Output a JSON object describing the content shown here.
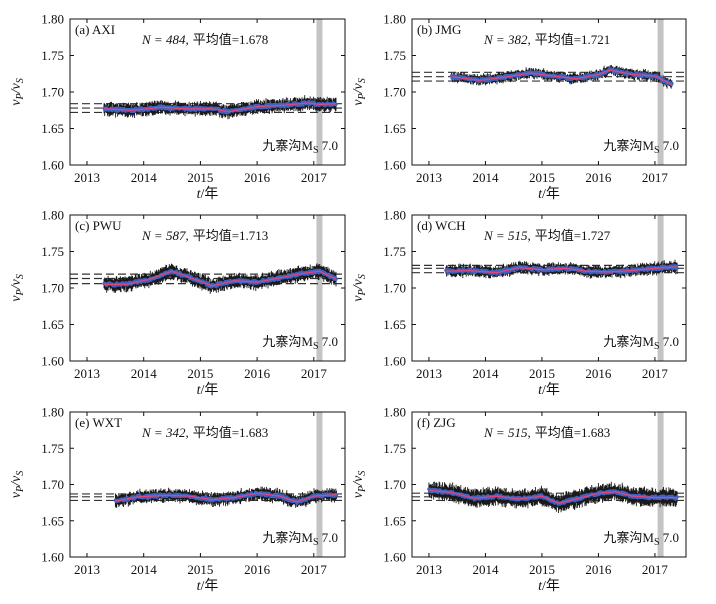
{
  "colors": {
    "mean_line": "#333333",
    "errorbar": "#1a1a1a",
    "points": "#3d63c4",
    "fit": "#e0457b",
    "quake_band": "#c4c4c4"
  },
  "chart_data": [
    {
      "type": "scatter",
      "panel_label": "(a) AXI",
      "stat_n": "N = 484,",
      "stat_mean": "平均值=1.678",
      "mean_value": 1.678,
      "mean_band": [
        1.672,
        1.684
      ],
      "event_label": "九寨沟M",
      "event_sub": "S",
      "event_mag": " 7.0",
      "event_year": 2017.1,
      "xlim": [
        2012.7,
        2017.55
      ],
      "ylim": [
        1.6,
        1.8
      ],
      "xticks": [
        "2013",
        "2014",
        "2015",
        "2016",
        "2017"
      ],
      "yticks": [
        "1.60",
        "1.65",
        "1.70",
        "1.75",
        "1.80"
      ],
      "ylabel_main": "v",
      "ylabel_sub1": "P",
      "ylabel_div": "/v",
      "ylabel_sub2": "S",
      "xlabel_main": "t",
      "xlabel_unit": "/年",
      "data_start": 2013.3,
      "data_end": 2017.4,
      "err": 0.008,
      "trend": [
        [
          2013.3,
          1.677
        ],
        [
          2013.8,
          1.675
        ],
        [
          2014.3,
          1.679
        ],
        [
          2014.8,
          1.677
        ],
        [
          2015.2,
          1.677
        ],
        [
          2015.5,
          1.673
        ],
        [
          2016.0,
          1.68
        ],
        [
          2016.5,
          1.682
        ],
        [
          2016.9,
          1.685
        ],
        [
          2017.1,
          1.683
        ],
        [
          2017.4,
          1.684
        ]
      ]
    },
    {
      "type": "scatter",
      "panel_label": "(b) JMG",
      "stat_n": "N = 382,",
      "stat_mean": "平均值=1.721",
      "mean_value": 1.721,
      "mean_band": [
        1.715,
        1.727
      ],
      "event_label": "九寨沟M",
      "event_sub": "S",
      "event_mag": " 7.0",
      "event_year": 2017.1,
      "xlim": [
        2012.7,
        2017.55
      ],
      "ylim": [
        1.6,
        1.8
      ],
      "xticks": [
        "2013",
        "2014",
        "2015",
        "2016",
        "2017"
      ],
      "yticks": [
        "1.60",
        "1.65",
        "1.70",
        "1.75",
        "1.80"
      ],
      "ylabel_main": "v",
      "ylabel_sub1": "P",
      "ylabel_div": "/v",
      "ylabel_sub2": "S",
      "xlabel_main": "t",
      "xlabel_unit": "/年",
      "data_start": 2013.4,
      "data_end": 2017.3,
      "err": 0.006,
      "trend": [
        [
          2013.4,
          1.721
        ],
        [
          2013.9,
          1.716
        ],
        [
          2014.3,
          1.72
        ],
        [
          2014.8,
          1.726
        ],
        [
          2015.2,
          1.722
        ],
        [
          2015.6,
          1.718
        ],
        [
          2016.0,
          1.724
        ],
        [
          2016.2,
          1.73
        ],
        [
          2016.6,
          1.724
        ],
        [
          2017.0,
          1.722
        ],
        [
          2017.3,
          1.71
        ]
      ]
    },
    {
      "type": "scatter",
      "panel_label": "(c) PWU",
      "stat_n": "N = 587,",
      "stat_mean": "平均值=1.713",
      "mean_value": 1.713,
      "mean_band": [
        1.706,
        1.719
      ],
      "event_label": "九寨沟M",
      "event_sub": "S",
      "event_mag": " 7.0",
      "event_year": 2017.1,
      "xlim": [
        2012.7,
        2017.55
      ],
      "ylim": [
        1.6,
        1.8
      ],
      "xticks": [
        "2013",
        "2014",
        "2015",
        "2016",
        "2017"
      ],
      "yticks": [
        "1.60",
        "1.65",
        "1.70",
        "1.75",
        "1.80"
      ],
      "ylabel_main": "v",
      "ylabel_sub1": "P",
      "ylabel_div": "/v",
      "ylabel_sub2": "S",
      "xlabel_main": "t",
      "xlabel_unit": "/年",
      "data_start": 2013.3,
      "data_end": 2017.4,
      "err": 0.009,
      "trend": [
        [
          2013.3,
          1.705
        ],
        [
          2013.7,
          1.705
        ],
        [
          2014.1,
          1.712
        ],
        [
          2014.5,
          1.723
        ],
        [
          2014.9,
          1.712
        ],
        [
          2015.2,
          1.703
        ],
        [
          2015.6,
          1.71
        ],
        [
          2016.0,
          1.708
        ],
        [
          2016.4,
          1.714
        ],
        [
          2016.8,
          1.72
        ],
        [
          2017.1,
          1.723
        ],
        [
          2017.4,
          1.712
        ]
      ]
    },
    {
      "type": "scatter",
      "panel_label": "(d) WCH",
      "stat_n": "N = 515,",
      "stat_mean": "平均值=1.727",
      "mean_value": 1.727,
      "mean_band": [
        1.721,
        1.731
      ],
      "event_label": "九寨沟M",
      "event_sub": "S",
      "event_mag": " 7.0",
      "event_year": 2017.1,
      "xlim": [
        2012.7,
        2017.55
      ],
      "ylim": [
        1.6,
        1.8
      ],
      "xticks": [
        "2013",
        "2014",
        "2015",
        "2016",
        "2017"
      ],
      "yticks": [
        "1.60",
        "1.65",
        "1.70",
        "1.75",
        "1.80"
      ],
      "ylabel_main": "v",
      "ylabel_sub1": "P",
      "ylabel_div": "/v",
      "ylabel_sub2": "S",
      "xlabel_main": "t",
      "xlabel_unit": "/年",
      "data_start": 2013.3,
      "data_end": 2017.4,
      "err": 0.007,
      "trend": [
        [
          2013.3,
          1.723
        ],
        [
          2013.7,
          1.724
        ],
        [
          2014.2,
          1.721
        ],
        [
          2014.6,
          1.728
        ],
        [
          2015.0,
          1.725
        ],
        [
          2015.4,
          1.727
        ],
        [
          2015.8,
          1.723
        ],
        [
          2016.2,
          1.722
        ],
        [
          2016.6,
          1.724
        ],
        [
          2017.0,
          1.727
        ],
        [
          2017.4,
          1.729
        ]
      ]
    },
    {
      "type": "scatter",
      "panel_label": "(e) WXT",
      "stat_n": "N = 342,",
      "stat_mean": "平均值=1.683",
      "mean_value": 1.683,
      "mean_band": [
        1.678,
        1.687
      ],
      "event_label": "九寨沟M",
      "event_sub": "S",
      "event_mag": " 7.0",
      "event_year": 2017.1,
      "xlim": [
        2012.7,
        2017.55
      ],
      "ylim": [
        1.6,
        1.8
      ],
      "xticks": [
        "2013",
        "2014",
        "2015",
        "2016",
        "2017"
      ],
      "yticks": [
        "1.60",
        "1.65",
        "1.70",
        "1.75",
        "1.80"
      ],
      "ylabel_main": "v",
      "ylabel_sub1": "P",
      "ylabel_div": "/v",
      "ylabel_sub2": "S",
      "xlabel_main": "t",
      "xlabel_unit": "/年",
      "data_start": 2013.5,
      "data_end": 2017.4,
      "err": 0.008,
      "trend": [
        [
          2013.5,
          1.677
        ],
        [
          2013.9,
          1.683
        ],
        [
          2014.4,
          1.685
        ],
        [
          2014.8,
          1.684
        ],
        [
          2015.2,
          1.679
        ],
        [
          2015.6,
          1.682
        ],
        [
          2016.0,
          1.688
        ],
        [
          2016.4,
          1.684
        ],
        [
          2016.7,
          1.676
        ],
        [
          2017.0,
          1.684
        ],
        [
          2017.4,
          1.686
        ]
      ]
    },
    {
      "type": "scatter",
      "panel_label": "(f) ZJG",
      "stat_n": "N = 515,",
      "stat_mean": "平均值=1.683",
      "mean_value": 1.683,
      "mean_band": [
        1.678,
        1.688
      ],
      "event_label": "九寨沟M",
      "event_sub": "S",
      "event_mag": " 7.0",
      "event_year": 2017.1,
      "xlim": [
        2012.7,
        2017.55
      ],
      "ylim": [
        1.6,
        1.8
      ],
      "xticks": [
        "2013",
        "2014",
        "2015",
        "2016",
        "2017"
      ],
      "yticks": [
        "1.60",
        "1.65",
        "1.70",
        "1.75",
        "1.80"
      ],
      "ylabel_main": "v",
      "ylabel_sub1": "P",
      "ylabel_div": "/v",
      "ylabel_sub2": "S",
      "xlabel_main": "t",
      "xlabel_unit": "/年",
      "data_start": 2013.0,
      "data_end": 2017.4,
      "err": 0.011,
      "trend": [
        [
          2013.0,
          1.692
        ],
        [
          2013.4,
          1.689
        ],
        [
          2013.8,
          1.681
        ],
        [
          2014.2,
          1.684
        ],
        [
          2014.6,
          1.68
        ],
        [
          2015.0,
          1.684
        ],
        [
          2015.3,
          1.674
        ],
        [
          2015.7,
          1.682
        ],
        [
          2016.0,
          1.688
        ],
        [
          2016.3,
          1.69
        ],
        [
          2016.6,
          1.684
        ],
        [
          2017.0,
          1.682
        ],
        [
          2017.4,
          1.682
        ]
      ]
    }
  ]
}
